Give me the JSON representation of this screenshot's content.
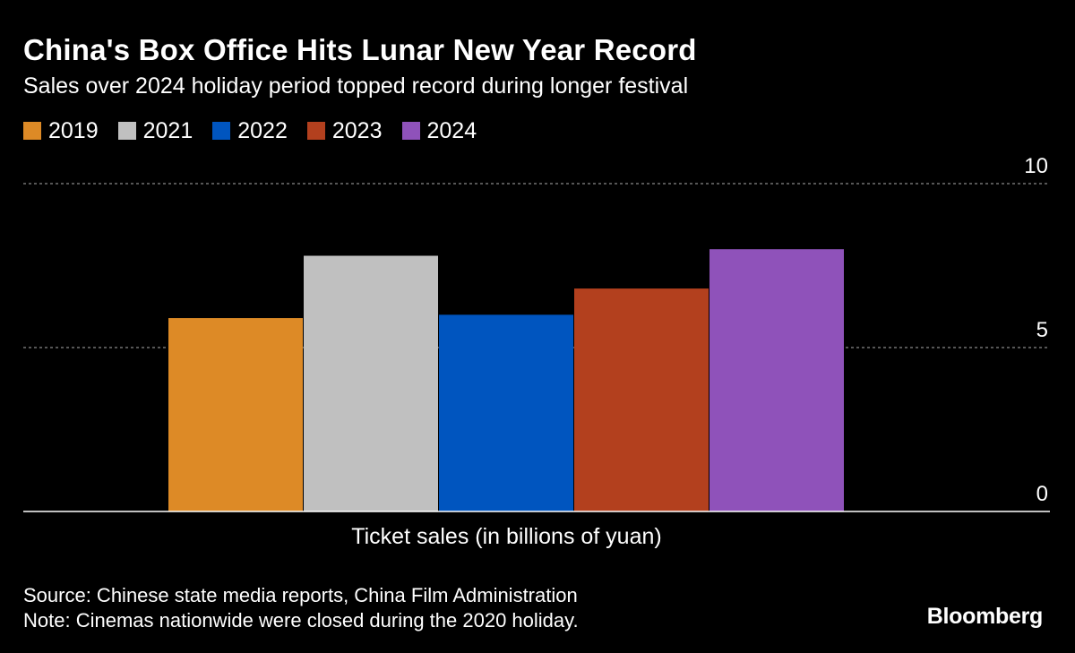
{
  "header": {
    "title": "China's Box Office Hits Lunar New Year Record",
    "subtitle": "Sales over 2024 holiday period topped record during longer festival"
  },
  "footer": {
    "source": "Source: Chinese state media reports, China Film Administration",
    "note": "Note: Cinemas nationwide were closed during the 2020 holiday.",
    "brand": "Bloomberg"
  },
  "chart_data": {
    "type": "bar",
    "title": "China's Box Office Hits Lunar New Year Record",
    "subtitle": "Sales over 2024 holiday period topped record during longer festival",
    "categories": [
      "Ticket sales (in billions of yuan)"
    ],
    "xlabel": "Ticket sales (in billions of yuan)",
    "ylabel": "",
    "ylim": [
      0,
      10
    ],
    "yticks": [
      0,
      5,
      10
    ],
    "grid": true,
    "legend_position": "top-left",
    "series": [
      {
        "name": "2019",
        "values": [
          5.9
        ],
        "color": "#dd8a26"
      },
      {
        "name": "2021",
        "values": [
          7.8
        ],
        "color": "#c0c0c0"
      },
      {
        "name": "2022",
        "values": [
          6.0
        ],
        "color": "#0055bf"
      },
      {
        "name": "2023",
        "values": [
          6.8
        ],
        "color": "#b3401e"
      },
      {
        "name": "2024",
        "values": [
          8.0
        ],
        "color": "#8f52ba"
      }
    ]
  }
}
